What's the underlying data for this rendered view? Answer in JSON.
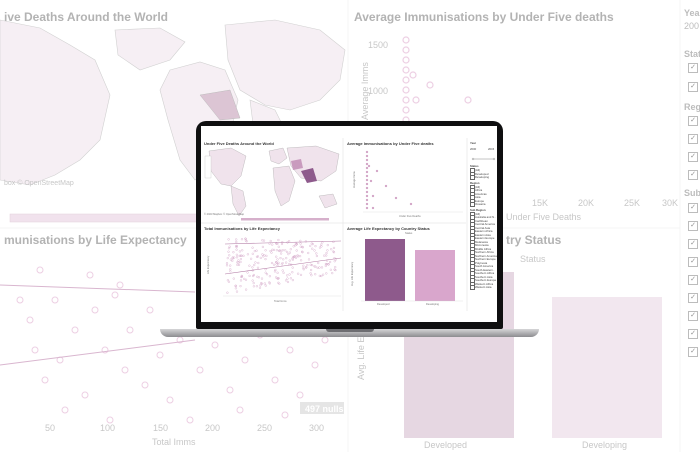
{
  "background": {
    "map_title": "ive Deaths Around the World",
    "map_credit": "box © OpenStreetMap",
    "scatter_title": "Average Immunisations by Under Five deaths",
    "scatter_ylabel": "Average Imms",
    "scatter_yticks": [
      "1500",
      "1000"
    ],
    "scatter_xticks": [
      "15K",
      "20K",
      "25K",
      "30K"
    ],
    "scatter_xlabel": "Under Five Deaths",
    "life_title": "munisations by Life Expectancy",
    "life_xticks": [
      "50",
      "100",
      "150",
      "200",
      "250",
      "300"
    ],
    "life_xlabel": "Total Imms",
    "life_badge": "497 nulls",
    "status_title": "try Status",
    "status_legend": "Status",
    "status_ylabel": "Avg. Life Expe",
    "status_categories": [
      "Developed",
      "Developing"
    ],
    "side": {
      "year_label": "Year",
      "status_label": "Stat",
      "region_label": "Regi",
      "subregion_label": "Sub R",
      "year_value": "200"
    }
  },
  "laptop": {
    "map_title": "Under Five Deaths Around the World",
    "map_credit": "© 2023 Mapbox © OpenStreetMap",
    "scatter_title": "Average Immunisations by Under Five deaths",
    "scatter_ylabel": "Average Imms",
    "scatter_xlabel": "Under Five Deaths",
    "life_title": "Total Immunisations by Life Expectancy",
    "life_xlabel": "Total Imms",
    "life_ylabel": "Life Expectancy",
    "bar_title": "Average Life Expectancy by Country Status",
    "bar_legend": "Status",
    "bar_ylabel": "Avg. Life Expectancy",
    "bar_categories": [
      "Developed",
      "Developing"
    ],
    "filters": {
      "year_label": "Year",
      "year_range": [
        "2000",
        "2015"
      ],
      "status_label": "Status",
      "status_items": [
        "(All)",
        "Developed",
        "Developing"
      ],
      "region_label": "Region",
      "region_items": [
        "(All)",
        "Africa",
        "Americas",
        "Asia",
        "Europe",
        "Oceania"
      ],
      "subregion_label": "Sub Region",
      "subregion_items": [
        "(All)",
        "Australia and N..",
        "Caribbean",
        "Central America",
        "Central Asia",
        "Eastern Africa",
        "Eastern Asia",
        "Eastern Europe",
        "Melanesia",
        "Micronesia",
        "Middle Africa",
        "Northern Africa",
        "Northern America",
        "Northern Europe",
        "Polynesia",
        "South America",
        "South-Eastern..",
        "Southern Africa",
        "Southern Asia",
        "Southern Europe",
        "Western Africa",
        "Western Asia"
      ]
    }
  },
  "colors": {
    "accent": "#8e5a8c",
    "light": "#d9a6cc",
    "pale": "#efd9e9",
    "line": "#c58fb6"
  }
}
